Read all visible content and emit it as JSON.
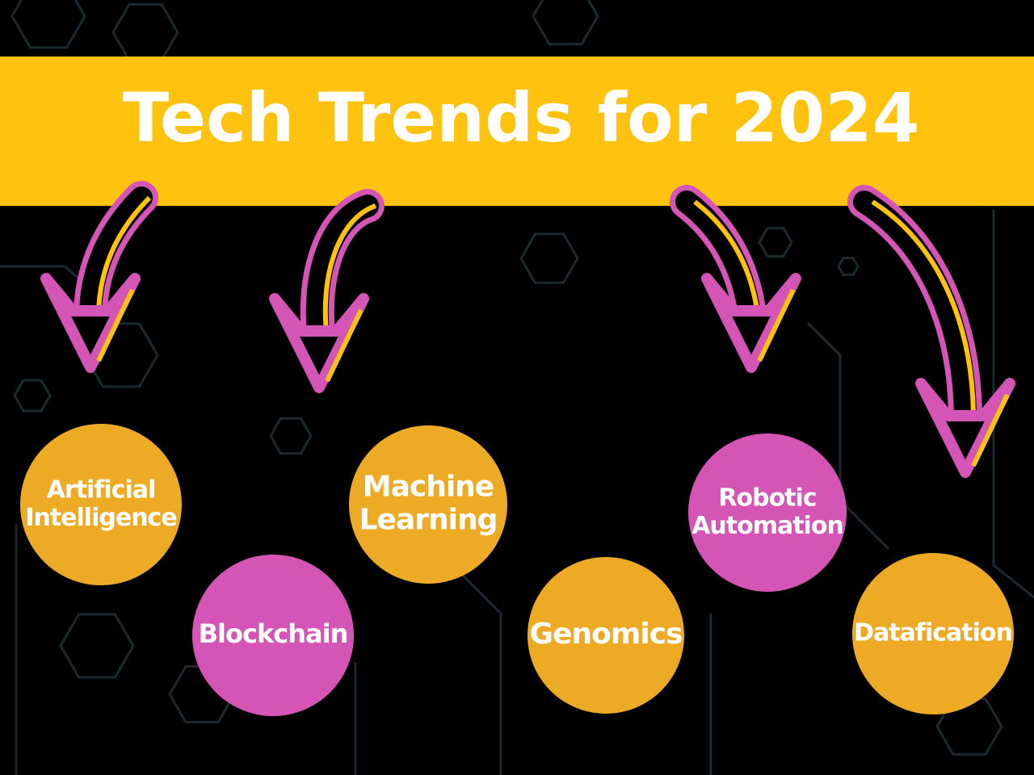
{
  "header": {
    "title": "Tech Trends for 2024"
  },
  "trends": [
    {
      "lines": [
        "Artificial",
        "Intelligence"
      ]
    },
    {
      "lines": [
        "Blockchain"
      ]
    },
    {
      "lines": [
        "Machine",
        "Learning"
      ]
    },
    {
      "lines": [
        "Genomics"
      ]
    },
    {
      "lines": [
        "Robotic",
        "Automation"
      ]
    },
    {
      "lines": [
        "Datafication"
      ]
    }
  ]
}
